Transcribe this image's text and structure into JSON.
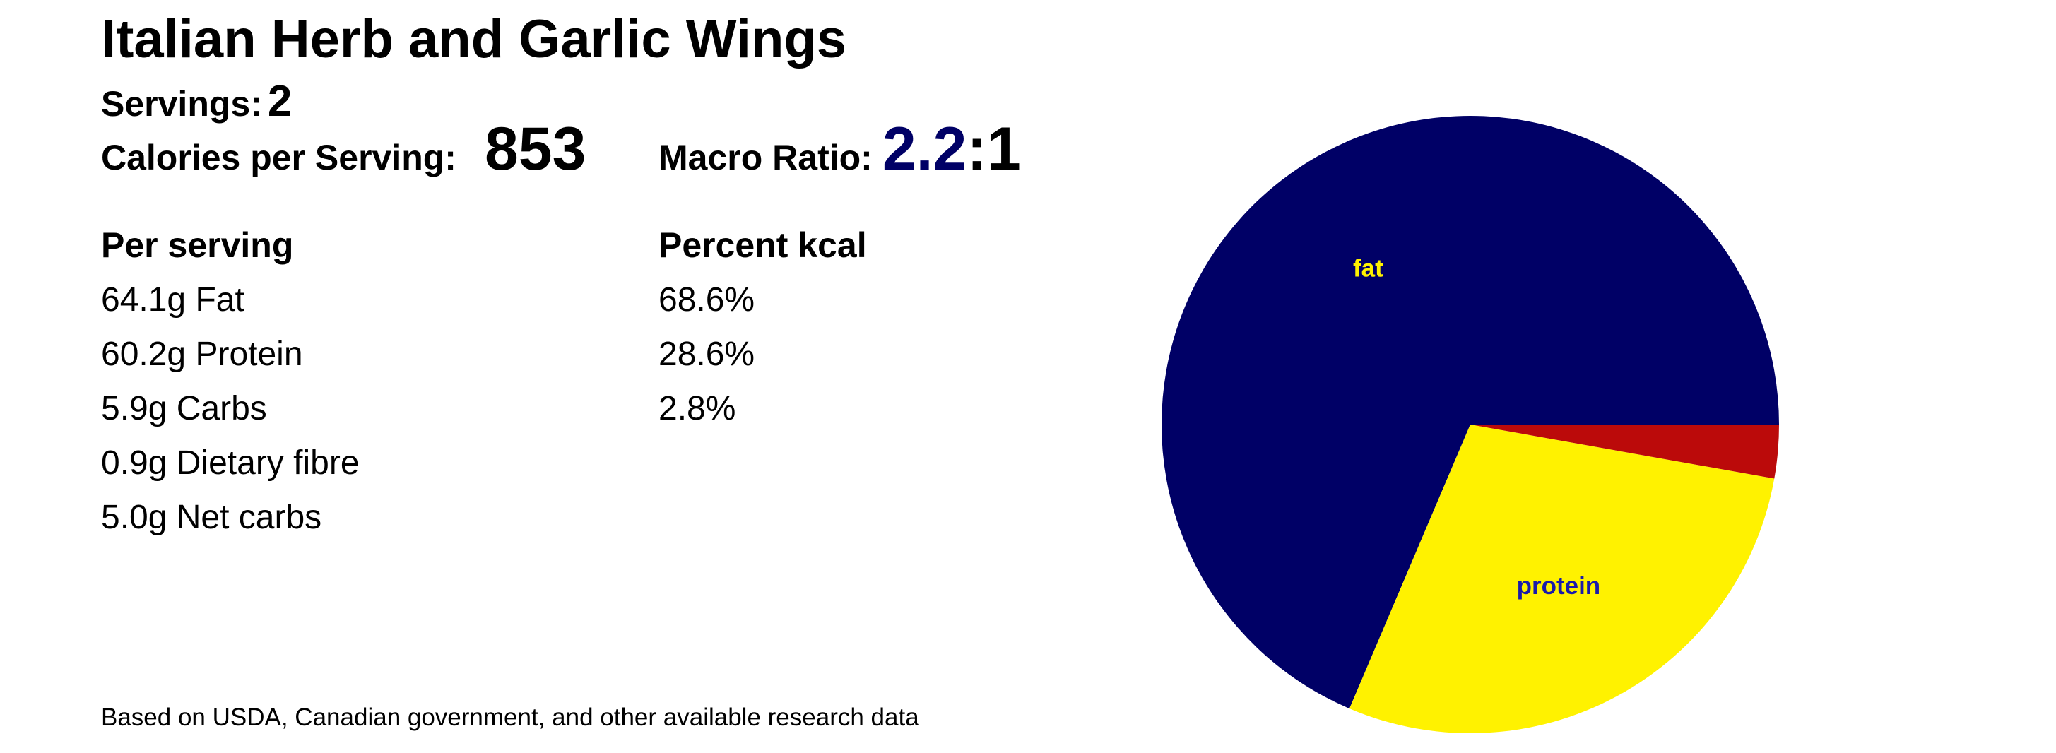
{
  "recipe": {
    "title": "Italian Herb and Garlic Wings",
    "servings_label": "Servings:",
    "servings_value": "2",
    "calories_label": "Calories per Serving:",
    "calories_value": "853",
    "ratio_label": "Macro Ratio:",
    "ratio_lead": "2.2",
    "ratio_tail": ":1"
  },
  "per_serving": {
    "heading": "Per serving",
    "items": [
      "64.1g Fat",
      "60.2g Protein",
      "5.9g Carbs",
      "0.9g Dietary fibre",
      "5.0g Net carbs"
    ]
  },
  "percent_kcal": {
    "heading": "Percent kcal",
    "items": [
      "68.6%",
      "28.6%",
      "2.8%"
    ]
  },
  "footer": "Based on USDA, Canadian government, and other available research data",
  "colors": {
    "fat": "#000066",
    "protein": "#fff200",
    "carbs": "#bb0a0a",
    "fat_label": "#fff200",
    "protein_label": "#1a1aaa"
  },
  "chart_data": {
    "type": "pie",
    "slices": [
      {
        "label": "fat",
        "value": 68.6,
        "color": "#000066",
        "label_color": "#fff200"
      },
      {
        "label": "protein",
        "value": 28.6,
        "color": "#fff200",
        "label_color": "#1a1aaa"
      },
      {
        "label": "",
        "value": 2.8,
        "color": "#bb0a0a",
        "label_color": "#ffffff"
      }
    ],
    "start": "3 o'clock",
    "direction": "counterclockwise"
  }
}
